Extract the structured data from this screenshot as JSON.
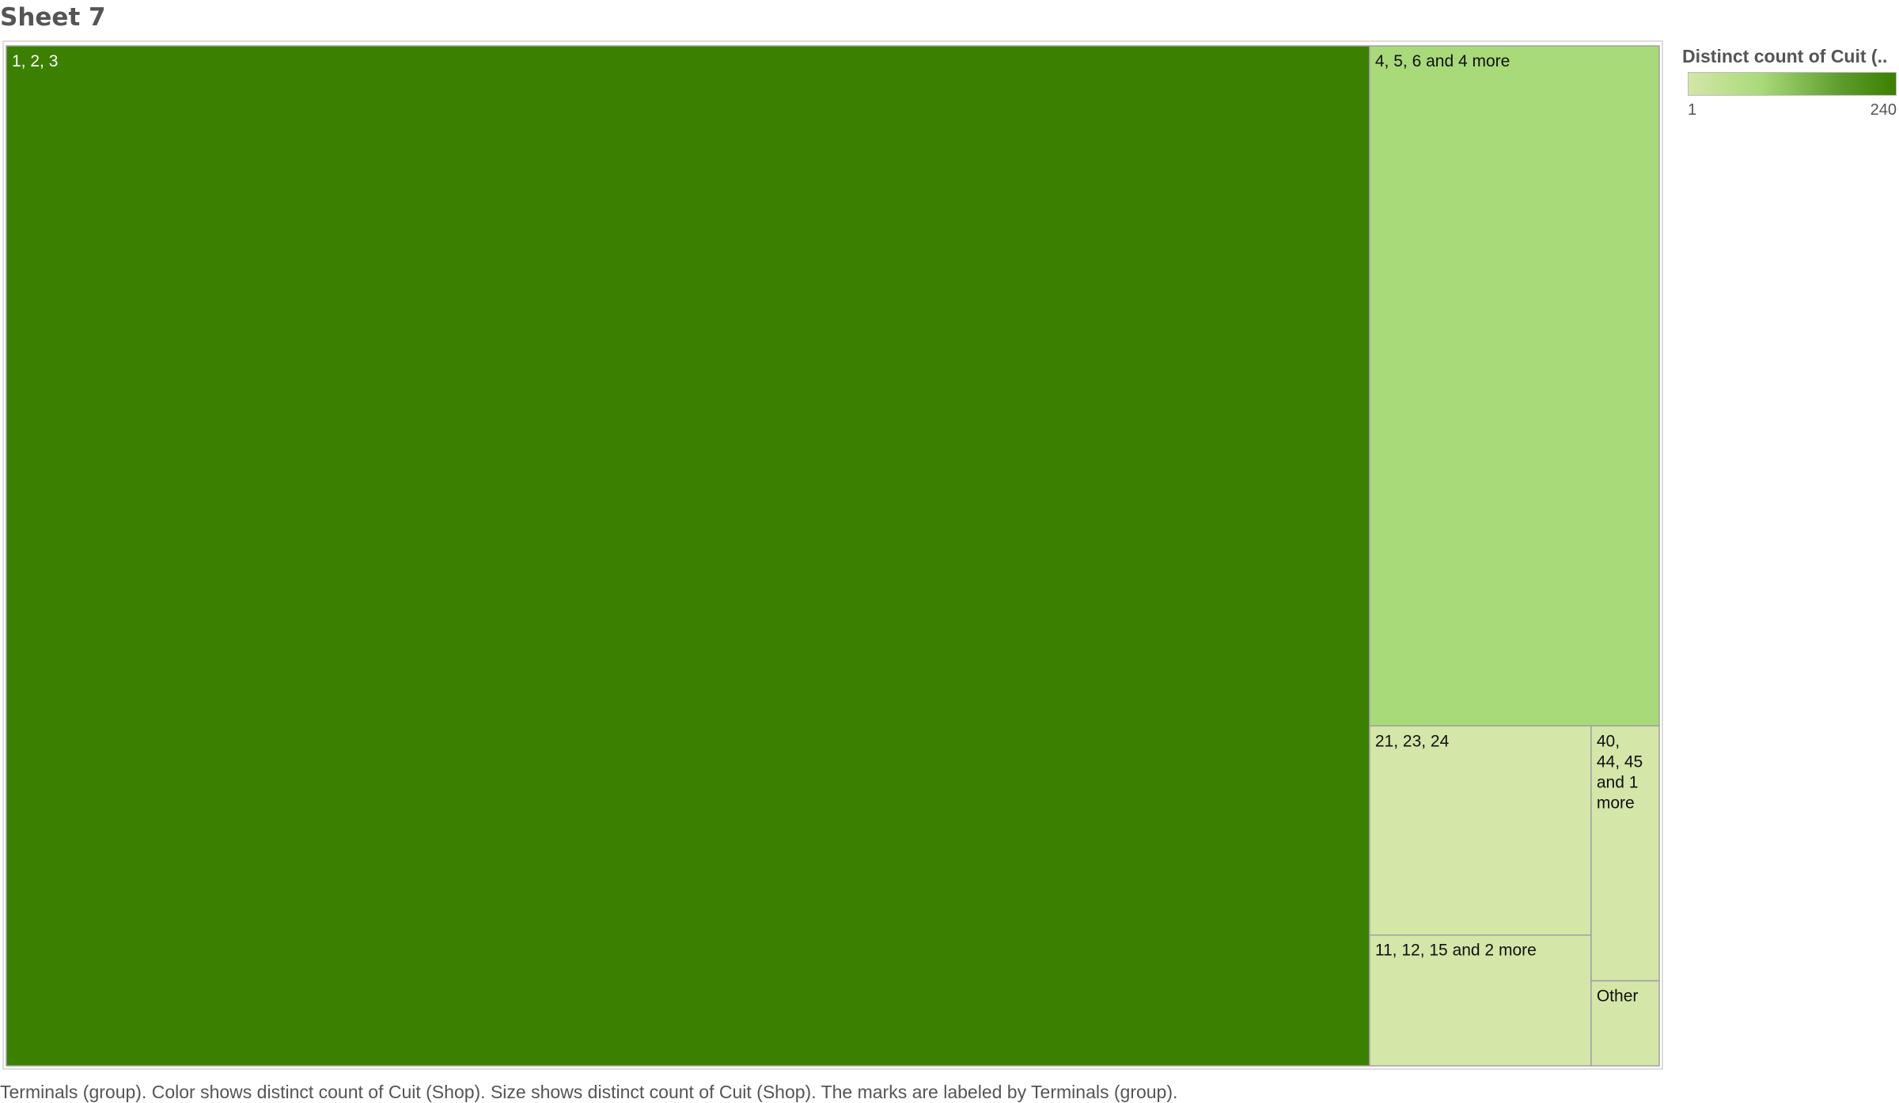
{
  "sheet": {
    "title": "Sheet 7"
  },
  "chart_data": {
    "type": "treemap",
    "title": "Sheet 7",
    "caption": "Terminals (group).  Color shows distinct count of Cuit (Shop).  Size shows distinct count of Cuit (Shop).  The marks are labeled by Terminals (group).",
    "legend": {
      "title": "Distinct count of Cuit (..",
      "min_label": "1",
      "max_label": "240",
      "min": 1,
      "max": 240,
      "color_low": "#d4e6a8",
      "color_high": "#3b8000",
      "placement": "top-right"
    },
    "series": [
      {
        "label": "1, 2, 3",
        "value": 240,
        "label_color": "#ffffff"
      },
      {
        "label": "4, 5, 6 and 4 more",
        "value": 34,
        "label_color": "#111111"
      },
      {
        "label": "21, 23, 24",
        "value": 8,
        "label_color": "#111111"
      },
      {
        "label": "11, 12, 15 and 2 more",
        "value": 5,
        "label_color": "#111111"
      },
      {
        "label": "40, 44, 45 and 1 more",
        "value": 3,
        "label_color": "#111111"
      },
      {
        "label": "Other",
        "value": 1,
        "label_color": "#111111"
      }
    ],
    "colors": {
      "1, 2, 3": "#3b8000",
      "4, 5, 6 and 4 more": "#a9da79",
      "21, 23, 24": "#d4e6a8",
      "11, 12, 15 and 2 more": "#d4e6a8",
      "40, 44, 45 and 1 more": "#d4e6a8",
      "Other": "#d4e6a8"
    }
  }
}
